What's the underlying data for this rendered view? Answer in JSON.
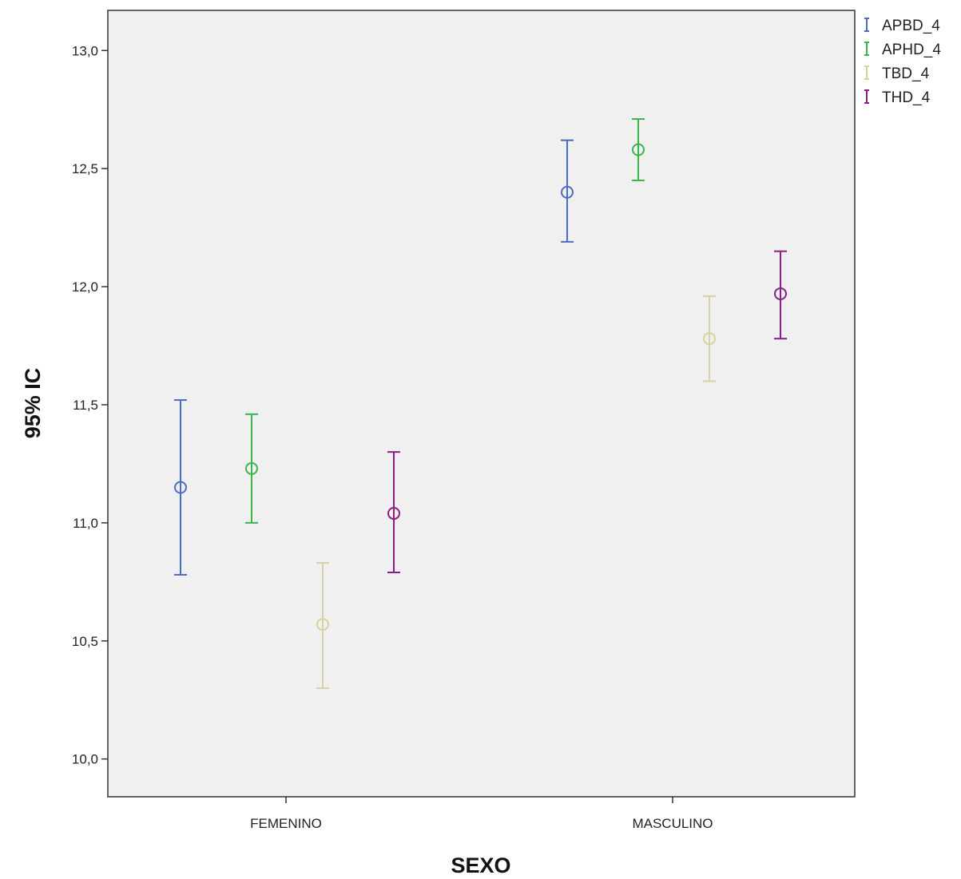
{
  "chart_data": {
    "type": "errorbar",
    "title": "",
    "xlabel": "SEXO",
    "ylabel": "95% IC",
    "categories": [
      "FEMENINO",
      "MASCULINO"
    ],
    "y_ticks": [
      "10,0",
      "10,5",
      "11,0",
      "11,5",
      "12,0",
      "12,5",
      "13,0"
    ],
    "y_tick_values": [
      10.0,
      10.5,
      11.0,
      11.5,
      12.0,
      12.5,
      13.0
    ],
    "ylim": [
      9.84,
      13.17
    ],
    "grid": false,
    "legend_position": "top-right, outside plot",
    "series": [
      {
        "name": "APBD_4",
        "color": "#4a6cc4",
        "mean": [
          11.15,
          12.4
        ],
        "lower": [
          10.78,
          12.19
        ],
        "upper": [
          11.52,
          12.62
        ]
      },
      {
        "name": "APHD_4",
        "color": "#3bb54a",
        "mean": [
          11.23,
          12.58
        ],
        "lower": [
          11.0,
          12.45
        ],
        "upper": [
          11.46,
          12.71
        ]
      },
      {
        "name": "TBD_4",
        "color": "#d8d2a2",
        "mean": [
          10.57,
          11.78
        ],
        "lower": [
          10.3,
          11.6
        ],
        "upper": [
          10.83,
          11.96
        ]
      },
      {
        "name": "THD_4",
        "color": "#8b1f86",
        "mean": [
          11.04,
          11.97
        ],
        "lower": [
          10.79,
          11.78
        ],
        "upper": [
          11.3,
          12.15
        ]
      }
    ],
    "plot_background": "#f0f0f0"
  }
}
